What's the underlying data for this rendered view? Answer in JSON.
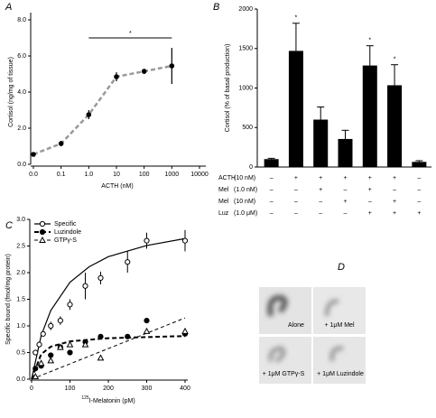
{
  "chart_data": [
    {
      "type": "line",
      "panel": "A",
      "y_label": "Cortisol (ng/mg of tissue)",
      "x_label": "ACTH (nM)",
      "categories": [
        "0.0",
        "0.1",
        "1.0",
        "10",
        "100",
        "1000",
        "10000"
      ],
      "values": [
        0.55,
        1.15,
        2.75,
        4.85,
        5.15,
        5.45,
        null
      ],
      "errors": [
        0.1,
        0.15,
        0.25,
        0.25,
        0.15,
        1.0,
        null
      ],
      "color": "#999999",
      "ylim": [
        0,
        8
      ],
      "yticks": [
        {
          "value": 0,
          "label": "0.0"
        },
        {
          "value": 2,
          "label": "2.0"
        },
        {
          "value": 4,
          "label": "4.0"
        },
        {
          "value": 6,
          "label": "6.0"
        },
        {
          "value": 8,
          "label": "8.0"
        }
      ],
      "annotation": {
        "text": "*",
        "from": "1.0",
        "to": "1000",
        "y": 7.0
      }
    },
    {
      "type": "bar",
      "panel": "B",
      "y_label": "Cortisol (% of basal production)",
      "values": [
        100,
        1470,
        600,
        355,
        1285,
        1035,
        65
      ],
      "errors": [
        10,
        350,
        160,
        110,
        250,
        260,
        15
      ],
      "value_labels": [
        null,
        "*",
        null,
        null,
        "*",
        "*",
        null
      ],
      "color": "#000000",
      "ylim": [
        0,
        2000
      ],
      "yticks": [
        0,
        500,
        1000,
        1500,
        2000
      ],
      "conditions": [
        {
          "label": "ACTH",
          "dose": "(10 nM)",
          "signs": [
            "–",
            "+",
            "+",
            "+",
            "+",
            "+",
            "–"
          ]
        },
        {
          "label": "Mel",
          "dose": "(1.0 nM)",
          "signs": [
            "–",
            "–",
            "+",
            "–",
            "+",
            "–",
            "–"
          ]
        },
        {
          "label": "Mel",
          "dose": "(10 nM)",
          "signs": [
            "–",
            "–",
            "–",
            "+",
            "–",
            "+",
            "–"
          ]
        },
        {
          "label": "Luz",
          "dose": "(1.0 μM)",
          "signs": [
            "–",
            "–",
            "–",
            "–",
            "+",
            "+",
            "+"
          ]
        }
      ]
    },
    {
      "type": "scatter",
      "panel": "C",
      "y_label": "Specific bound (fmol/mg protein)",
      "x_label_sup": "125",
      "x_label": "I-Melatonin (pM)",
      "xlim": [
        0,
        400
      ],
      "xticks": [
        0,
        100,
        200,
        300,
        400
      ],
      "ylim": [
        0,
        3
      ],
      "yticks": [
        {
          "value": 0,
          "label": "0.0"
        },
        {
          "value": 0.5,
          "label": "0.5"
        },
        {
          "value": 1,
          "label": "1.0"
        },
        {
          "value": 1.5,
          "label": "1.5"
        },
        {
          "value": 2,
          "label": "2.0"
        },
        {
          "value": 2.5,
          "label": "2.5"
        },
        {
          "value": 3,
          "label": "3.0"
        }
      ],
      "series": [
        {
          "name": "Specific",
          "marker": "open-circle",
          "line": "solid",
          "color": "#000000",
          "x": [
            10,
            20,
            30,
            50,
            75,
            100,
            140,
            180,
            250,
            300,
            400
          ],
          "values": [
            0.5,
            0.65,
            0.85,
            1.0,
            1.1,
            1.4,
            1.75,
            1.9,
            2.2,
            2.6,
            2.6
          ],
          "errors": [
            0.05,
            0.05,
            0.05,
            0.08,
            0.08,
            0.1,
            0.25,
            0.12,
            0.2,
            0.15,
            0.2
          ],
          "fit": {
            "x": [
              0,
              25,
              50,
              100,
              150,
              200,
              300,
              400
            ],
            "values": [
              0,
              0.82,
              1.29,
              1.82,
              2.11,
              2.3,
              2.51,
              2.64
            ]
          }
        },
        {
          "name": "Luzindole",
          "marker": "filled-circle",
          "line": "bold-dash",
          "color": "#000000",
          "x": [
            10,
            25,
            50,
            75,
            100,
            140,
            180,
            250,
            300,
            400
          ],
          "values": [
            0.2,
            0.25,
            0.45,
            0.6,
            0.5,
            0.7,
            0.8,
            0.8,
            1.1,
            0.85
          ],
          "fit": {
            "x": [
              0,
              25,
              50,
              100,
              200,
              300,
              400
            ],
            "values": [
              0,
              0.47,
              0.61,
              0.71,
              0.77,
              0.79,
              0.81
            ]
          }
        },
        {
          "name": "GTPγ-S",
          "marker": "open-triangle",
          "line": "dash",
          "color": "#000000",
          "x": [
            10,
            25,
            50,
            75,
            100,
            140,
            180,
            300,
            400
          ],
          "values": [
            0.05,
            0.3,
            0.35,
            0.6,
            0.65,
            0.65,
            0.4,
            0.9,
            0.9
          ],
          "fit": {
            "x": [
              0,
              400
            ],
            "values": [
              0,
              1.15
            ]
          }
        }
      ]
    },
    {
      "type": "image",
      "panel": "D",
      "labels": [
        "Alone",
        "+ 1μM Mel",
        "+ 1μM GTPγ-S",
        "+ 1μM Luzindole"
      ]
    }
  ]
}
